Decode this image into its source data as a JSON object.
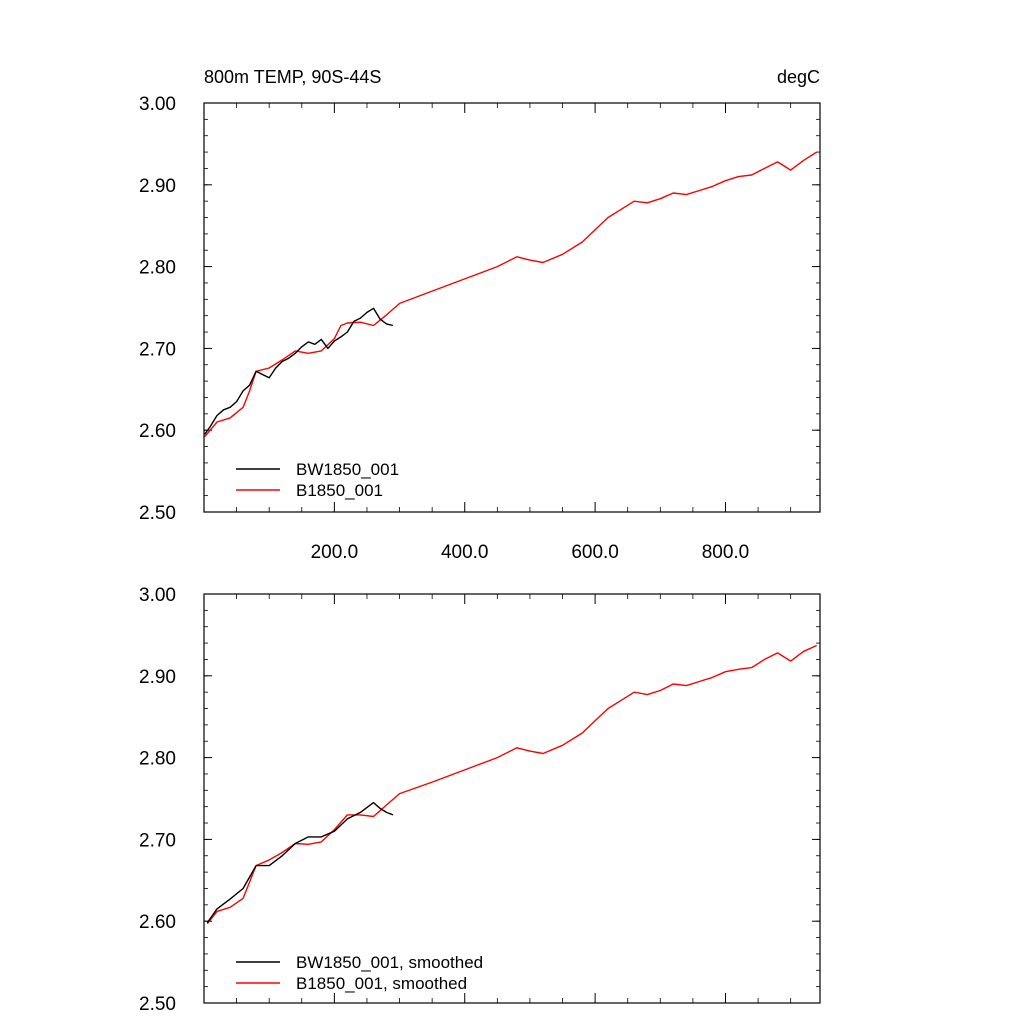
{
  "chart_data": [
    {
      "type": "line",
      "title_left": "800m TEMP, 90S-44S",
      "title_right": "degC",
      "xlim": [
        0,
        945
      ],
      "ylim": [
        2.5,
        3.0
      ],
      "xticks": [
        200,
        400,
        600,
        800
      ],
      "xtick_labels": [
        "200.0",
        "400.0",
        "600.0",
        "800.0"
      ],
      "yticks": [
        2.5,
        2.6,
        2.7,
        2.8,
        2.9,
        3.0
      ],
      "ytick_labels": [
        "2.50",
        "2.60",
        "2.70",
        "2.80",
        "2.90",
        "3.00"
      ],
      "legend_position": "bottom-left",
      "series": [
        {
          "name": "BW1850_001",
          "color": "#000000",
          "x": [
            1,
            10,
            20,
            30,
            40,
            50,
            60,
            70,
            80,
            90,
            100,
            110,
            120,
            130,
            140,
            150,
            160,
            170,
            180,
            190,
            200,
            210,
            220,
            230,
            240,
            250,
            260,
            270,
            280,
            290
          ],
          "y": [
            2.595,
            2.605,
            2.618,
            2.625,
            2.628,
            2.635,
            2.648,
            2.655,
            2.672,
            2.668,
            2.664,
            2.676,
            2.684,
            2.688,
            2.694,
            2.702,
            2.708,
            2.705,
            2.711,
            2.7,
            2.709,
            2.714,
            2.72,
            2.733,
            2.737,
            2.744,
            2.749,
            2.736,
            2.73,
            2.728
          ]
        },
        {
          "name": "B1850_001",
          "color": "#ff0000",
          "x": [
            1,
            20,
            40,
            60,
            70,
            80,
            100,
            120,
            140,
            160,
            180,
            200,
            210,
            220,
            240,
            260,
            280,
            300,
            350,
            400,
            450,
            480,
            500,
            520,
            550,
            580,
            600,
            620,
            640,
            660,
            680,
            700,
            720,
            740,
            760,
            780,
            800,
            820,
            840,
            860,
            880,
            900,
            920,
            940
          ],
          "y": [
            2.592,
            2.61,
            2.615,
            2.628,
            2.648,
            2.672,
            2.676,
            2.686,
            2.697,
            2.694,
            2.697,
            2.712,
            2.728,
            2.731,
            2.732,
            2.728,
            2.741,
            2.755,
            2.77,
            2.785,
            2.8,
            2.812,
            2.808,
            2.805,
            2.815,
            2.83,
            2.845,
            2.86,
            2.87,
            2.88,
            2.878,
            2.883,
            2.89,
            2.888,
            2.893,
            2.898,
            2.905,
            2.91,
            2.912,
            2.92,
            2.928,
            2.918,
            2.93,
            2.94
          ]
        }
      ]
    },
    {
      "type": "line",
      "xlim": [
        0,
        945
      ],
      "ylim": [
        2.5,
        3.0
      ],
      "xticks": [
        200,
        400,
        600,
        800
      ],
      "yticks": [
        2.5,
        2.6,
        2.7,
        2.8,
        2.9,
        3.0
      ],
      "ytick_labels": [
        "2.50",
        "2.60",
        "2.70",
        "2.80",
        "2.90",
        "3.00"
      ],
      "legend_position": "bottom-left",
      "series": [
        {
          "name": "BW1850_001, smoothed",
          "color": "#000000",
          "x": [
            5,
            20,
            40,
            60,
            80,
            100,
            120,
            140,
            160,
            180,
            200,
            220,
            240,
            260,
            270,
            280,
            290
          ],
          "y": [
            2.598,
            2.615,
            2.627,
            2.64,
            2.668,
            2.668,
            2.68,
            2.695,
            2.703,
            2.703,
            2.71,
            2.725,
            2.733,
            2.745,
            2.738,
            2.733,
            2.73
          ]
        },
        {
          "name": "B1850_001, smoothed",
          "color": "#ff0000",
          "x": [
            5,
            20,
            40,
            60,
            80,
            100,
            120,
            140,
            160,
            180,
            200,
            220,
            240,
            260,
            280,
            300,
            350,
            400,
            450,
            480,
            500,
            520,
            550,
            580,
            600,
            620,
            640,
            660,
            680,
            700,
            720,
            740,
            760,
            780,
            800,
            820,
            840,
            860,
            880,
            900,
            920,
            940
          ],
          "y": [
            2.597,
            2.612,
            2.617,
            2.628,
            2.668,
            2.675,
            2.684,
            2.695,
            2.694,
            2.697,
            2.712,
            2.73,
            2.73,
            2.728,
            2.742,
            2.756,
            2.77,
            2.785,
            2.8,
            2.812,
            2.808,
            2.805,
            2.815,
            2.83,
            2.845,
            2.86,
            2.87,
            2.88,
            2.877,
            2.882,
            2.89,
            2.888,
            2.893,
            2.898,
            2.905,
            2.908,
            2.91,
            2.92,
            2.928,
            2.918,
            2.93,
            2.937
          ]
        }
      ]
    }
  ]
}
